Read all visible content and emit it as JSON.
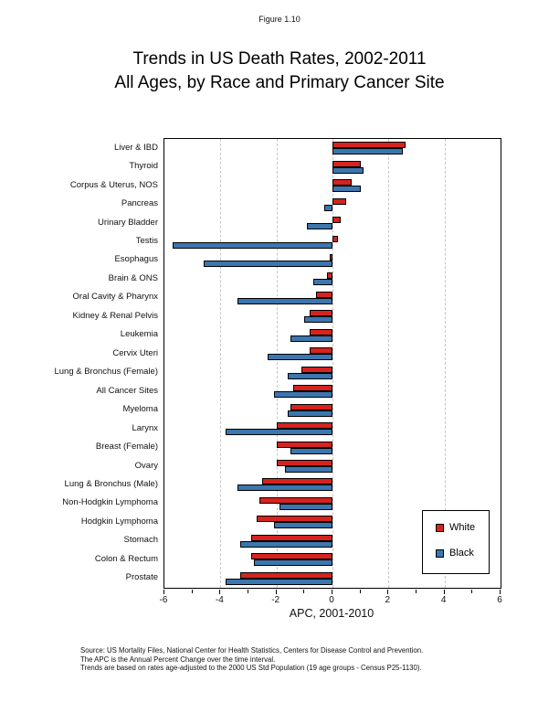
{
  "page": {
    "figure_label": "Figure 1.10",
    "title_line1": "Trends in US Death Rates, 2002-2011",
    "title_line2": "All Ages, by Race and Primary Cancer Site"
  },
  "chart_data": {
    "type": "bar",
    "orientation": "horizontal",
    "title": "Trends in US Death Rates, 2002-2011 All Ages, by Race and Primary Cancer Site",
    "xlabel": "APC, 2001-2010",
    "xlim": [
      -6,
      6
    ],
    "x_major_ticks": [
      -6,
      -4,
      -2,
      0,
      2,
      4,
      6
    ],
    "x_minor_tick_step": 1,
    "gridlines_at": [
      -4,
      -2,
      0,
      2,
      4
    ],
    "grid_style": "dashed",
    "legend_position": "inside-right-lower",
    "categories": [
      "Liver & IBD",
      "Thyroid",
      "Corpus & Uterus, NOS",
      "Pancreas",
      "Urinary Bladder",
      "Testis",
      "Esophagus",
      "Brain & ONS",
      "Oral Cavity & Pharynx",
      "Kidney & Renal Pelvis",
      "Leukemia",
      "Cervix Uteri",
      "Lung & Bronchus (Female)",
      "All Cancer Sites",
      "Myeloma",
      "Larynx",
      "Breast (Female)",
      "Ovary",
      "Lung & Bronchus (Male)",
      "Non-Hodgkin Lymphoma",
      "Hodgkin Lymphoma",
      "Stomach",
      "Colon & Rectum",
      "Prostate"
    ],
    "series": [
      {
        "name": "White",
        "color": "#d6231f",
        "values": [
          2.6,
          1.0,
          0.7,
          0.5,
          0.3,
          0.2,
          -0.1,
          -0.2,
          -0.6,
          -0.8,
          -0.8,
          -0.8,
          -1.1,
          -1.4,
          -1.5,
          -2.0,
          -2.0,
          -2.0,
          -2.5,
          -2.6,
          -2.7,
          -2.9,
          -2.9,
          -3.3
        ]
      },
      {
        "name": "Black",
        "color": "#3c76af",
        "values": [
          2.5,
          1.1,
          1.0,
          -0.3,
          -0.9,
          -5.7,
          -4.6,
          -0.7,
          -3.4,
          -1.0,
          -1.5,
          -2.3,
          -1.6,
          -2.1,
          -1.6,
          -3.8,
          -1.5,
          -1.7,
          -3.4,
          -1.9,
          -2.1,
          -3.3,
          -2.8,
          -3.8
        ]
      }
    ]
  },
  "footer": {
    "line1": "Source: US Mortality Files, National Center for Health Statistics, Centers for Disease Control and Prevention.",
    "line2": "The APC is the Annual Percent Change over the time interval.",
    "line3": "Trends are based on rates age-adjusted to the 2000 US Std Population (19 age groups - Census P25-1130)."
  }
}
